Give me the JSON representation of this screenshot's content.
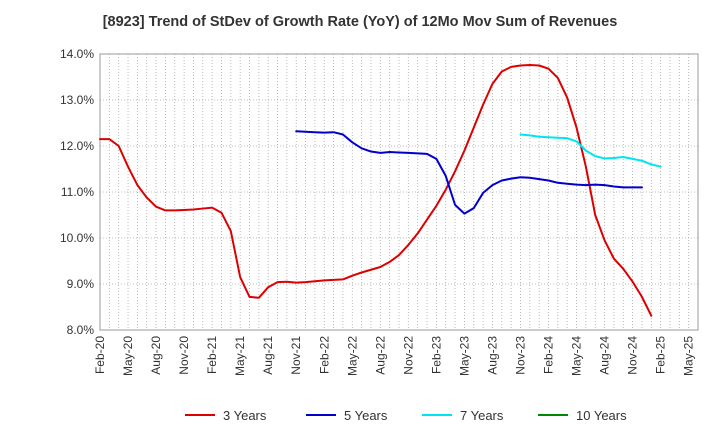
{
  "chart_data": {
    "type": "line",
    "title": "[8923]  Trend of StDev of Growth Rate (YoY) of 12Mo Mov Sum of Revenues",
    "xlabel": "",
    "ylabel": "",
    "ylim": [
      8.0,
      14.0
    ],
    "yticks": [
      8.0,
      9.0,
      10.0,
      11.0,
      12.0,
      13.0,
      14.0
    ],
    "ytick_labels": [
      "8.0%",
      "9.0%",
      "10.0%",
      "11.0%",
      "12.0%",
      "13.0%",
      "14.0%"
    ],
    "x_start": "Feb-20",
    "x_month_count": 64,
    "xtick_labels": [
      "Feb-20",
      "May-20",
      "Aug-20",
      "Nov-20",
      "Feb-21",
      "May-21",
      "Aug-21",
      "Nov-21",
      "Feb-22",
      "May-22",
      "Aug-22",
      "Nov-22",
      "Feb-23",
      "May-23",
      "Aug-23",
      "Nov-23",
      "Feb-24",
      "May-24",
      "Aug-24",
      "Nov-24",
      "Feb-25",
      "May-25"
    ],
    "grid": true,
    "legend_position": "bottom",
    "series": [
      {
        "name": "3 Years",
        "color": "#dd0000",
        "start_index": 0,
        "values": [
          12.15,
          12.15,
          12.0,
          11.55,
          11.15,
          10.88,
          10.68,
          10.6,
          10.6,
          10.61,
          10.62,
          10.64,
          10.66,
          10.55,
          10.15,
          9.15,
          8.72,
          8.7,
          8.93,
          9.04,
          9.05,
          9.03,
          9.04,
          9.06,
          9.08,
          9.09,
          9.1,
          9.18,
          9.25,
          9.31,
          9.37,
          9.48,
          9.63,
          9.85,
          10.1,
          10.4,
          10.7,
          11.05,
          11.45,
          11.9,
          12.4,
          12.9,
          13.35,
          13.62,
          13.72,
          13.75,
          13.76,
          13.75,
          13.68,
          13.48,
          13.05,
          12.4,
          11.55,
          10.5,
          9.95,
          9.55,
          9.33,
          9.05,
          8.72,
          8.31
        ]
      },
      {
        "name": "5 Years",
        "color": "#0000cc",
        "start_index": 21,
        "values": [
          12.32,
          12.31,
          12.3,
          12.29,
          12.3,
          12.25,
          12.08,
          11.95,
          11.88,
          11.85,
          11.87,
          11.86,
          11.85,
          11.84,
          11.83,
          11.72,
          11.35,
          10.72,
          10.53,
          10.65,
          10.98,
          11.15,
          11.25,
          11.29,
          11.32,
          11.31,
          11.28,
          11.25,
          11.2,
          11.18,
          11.16,
          11.15,
          11.16,
          11.15,
          11.12,
          11.1,
          11.1,
          11.1
        ]
      },
      {
        "name": "7 Years",
        "color": "#00e5ee",
        "start_index": 45,
        "values": [
          12.25,
          12.23,
          12.2,
          12.19,
          12.18,
          12.17,
          12.1,
          11.9,
          11.78,
          11.73,
          11.74,
          11.76,
          11.72,
          11.68,
          11.6,
          11.55
        ]
      },
      {
        "name": "10 Years",
        "color": "#008800",
        "start_index": 0,
        "values": []
      }
    ]
  }
}
